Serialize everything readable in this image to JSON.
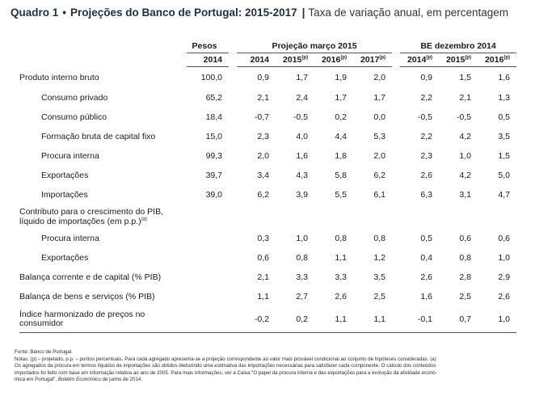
{
  "title": {
    "label": "Quadro 1",
    "bullet": "•",
    "main": "Projeções do Banco de Portugal: 2015-2017",
    "separator": "|",
    "subtitle": "Taxa de variação anual, em percentagem"
  },
  "header": {
    "pesos": "Pesos",
    "group1": "Projeção março 2015",
    "group2": "BE dezembro 2014",
    "years": [
      {
        "year": "2014",
        "sup": ""
      },
      {
        "year": "2014",
        "sup": ""
      },
      {
        "year": "2015",
        "sup": "(p)"
      },
      {
        "year": "2016",
        "sup": "(p)"
      },
      {
        "year": "2017",
        "sup": "(p)"
      },
      {
        "year": "2014",
        "sup": "(p)"
      },
      {
        "year": "2015",
        "sup": "(p)"
      },
      {
        "year": "2016",
        "sup": "(p)"
      }
    ]
  },
  "rows": [
    {
      "label": "Produto interno bruto",
      "values": [
        "100,0",
        "0,9",
        "1,7",
        "1,9",
        "2,0",
        "0,9",
        "1,5",
        "1,6"
      ]
    },
    {
      "label": "Consumo privado",
      "values": [
        "65,2",
        "2,1",
        "2,4",
        "1,7",
        "1,7",
        "2,2",
        "2,1",
        "1,3"
      ]
    },
    {
      "label": "Consumo público",
      "values": [
        "18,4",
        "-0,7",
        "-0,5",
        "0,2",
        "0,0",
        "-0,5",
        "-0,5",
        "0,5"
      ]
    },
    {
      "label": "Formação bruta de capital fixo",
      "values": [
        "15,0",
        "2,3",
        "4,0",
        "4,4",
        "5,3",
        "2,2",
        "4,2",
        "3,5"
      ]
    },
    {
      "label": "Procura interna",
      "values": [
        "99,3",
        "2,0",
        "1,6",
        "1,8",
        "2,0",
        "2,3",
        "1,0",
        "1,5"
      ]
    },
    {
      "label": "Exportações",
      "values": [
        "39,7",
        "3,4",
        "4,3",
        "5,8",
        "6,2",
        "2,6",
        "4,2",
        "5,0"
      ]
    },
    {
      "label": "Importações",
      "values": [
        "39,0",
        "6,2",
        "3,9",
        "5,5",
        "6,1",
        "6,3",
        "3,1",
        "4,7"
      ]
    },
    {
      "label": "Contributo para o crescimento do PIB, líquido de importações (em p.p.)",
      "sup": "(a)",
      "values": [
        "",
        "",
        "",
        "",
        "",
        "",
        "",
        ""
      ]
    },
    {
      "label": "Procura interna",
      "values": [
        "",
        "0,3",
        "1,0",
        "0,8",
        "0,8",
        "0,5",
        "0,6",
        "0,6"
      ]
    },
    {
      "label": "Exportações",
      "values": [
        "",
        "0,6",
        "0,8",
        "1,1",
        "1,2",
        "0,4",
        "0,8",
        "1,0"
      ]
    },
    {
      "label": "Balança corrente e de capital (% PIB)",
      "values": [
        "",
        "2,1",
        "3,3",
        "3,3",
        "3,5",
        "2,6",
        "2,8",
        "2,9"
      ]
    },
    {
      "label": "Balança de bens e serviços (% PIB)",
      "values": [
        "",
        "1,1",
        "2,7",
        "2,6",
        "2,5",
        "1,6",
        "2,5",
        "2,6"
      ]
    },
    {
      "label": "Índice harmonizado de preços no consumidor",
      "values": [
        "",
        "-0,2",
        "0,2",
        "1,1",
        "1,1",
        "-0,1",
        "0,7",
        "1,0"
      ]
    }
  ],
  "notes": {
    "fonte": "Fonte: Banco de Portugal.",
    "notas_line1": "Notas: (p) – projetado, p.p. – pontos percentuais. Para cada agregado apresenta-se a projeção correspondente ao valor mais provável condicional ao conjunto de hipóteses consideradas. (a)",
    "notas_line2": "Os agregados da procura em termos líquidos de importações são obtidos deduzindo uma estimativa das importações necessárias para satisfazer cada componente. O cálculo dos conteúdos",
    "notas_line3": "importados foi feito com base em informação relativa ao ano de 2005. Para mais informações, ver a Caixa \"O papel da procura interna e das exportações para a evolução da atividade econó-",
    "notas_line4a": "mica em Portugal\",",
    "notas_line4b": "Boletim Económico",
    "notas_line4c": "de junho de 2014."
  }
}
